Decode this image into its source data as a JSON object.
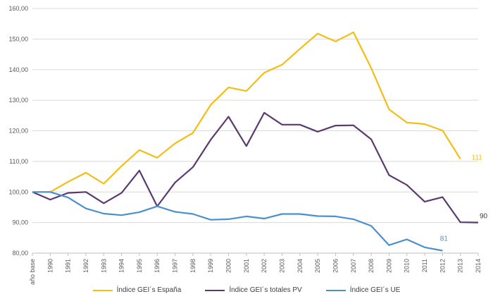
{
  "chart_data": {
    "type": "line",
    "title": "",
    "xlabel": "",
    "ylabel": "",
    "ylim": [
      80,
      160
    ],
    "yticks": [
      "80,00",
      "90,00",
      "100,00",
      "110,00",
      "120,00",
      "130,00",
      "140,00",
      "150,00",
      "160,00"
    ],
    "ytick_values": [
      80,
      90,
      100,
      110,
      120,
      130,
      140,
      150,
      160
    ],
    "grid": "horizontal",
    "legend_position": "bottom",
    "categories": [
      "año base",
      "1990",
      "1991",
      "1992",
      "1993",
      "1994",
      "1995",
      "1996",
      "1997",
      "1998",
      "1999",
      "2000",
      "2001",
      "2002",
      "2003",
      "2004",
      "2005",
      "2006",
      "2007",
      "2008",
      "2009",
      "2010",
      "2011",
      "2012",
      "2013",
      "2014"
    ],
    "series": [
      {
        "name": "Índice GEI´s España",
        "color": "#F5BD13",
        "values": [
          100,
          100,
          103.3,
          106.3,
          102.7,
          108.5,
          113.7,
          111.2,
          115.9,
          119.3,
          128.5,
          134.2,
          133.0,
          139.0,
          141.6,
          146.8,
          151.8,
          149.2,
          152.2,
          140.5,
          127.0,
          122.7,
          122.2,
          120.1,
          110.8,
          null
        ],
        "end_label": "111"
      },
      {
        "name": "Índice GEI´s totales PV",
        "color": "#5B3A72",
        "values": [
          100,
          97.5,
          99.7,
          100.0,
          96.3,
          99.7,
          107.0,
          95.3,
          103.1,
          108.1,
          117.1,
          124.6,
          115.0,
          125.9,
          122.0,
          122.0,
          119.7,
          121.7,
          121.8,
          117.2,
          105.5,
          102.3,
          96.8,
          98.3,
          90.1,
          90.0
        ],
        "end_label": "90"
      },
      {
        "name": "Índice GEI´s UE",
        "color": "#4A90D0",
        "values": [
          100,
          100,
          98.2,
          94.6,
          92.9,
          92.4,
          93.4,
          95.3,
          93.5,
          92.8,
          90.9,
          91.1,
          92.0,
          91.3,
          92.8,
          92.8,
          92.1,
          92.0,
          91.1,
          88.9,
          82.6,
          84.5,
          81.9,
          80.8,
          null,
          null
        ],
        "end_label": "81"
      }
    ]
  }
}
